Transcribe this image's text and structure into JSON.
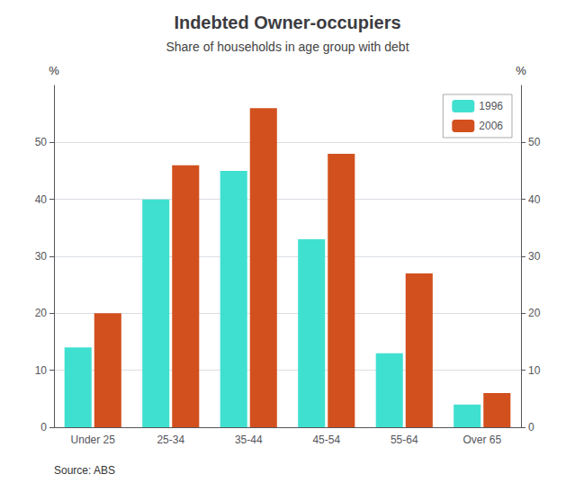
{
  "chart_data": {
    "type": "bar",
    "title": "Indebted Owner-occupiers",
    "subtitle": "Share of households in age group with debt",
    "categories": [
      "Under 25",
      "25-34",
      "35-44",
      "45-54",
      "55-64",
      "Over 65"
    ],
    "series": [
      {
        "name": "1996",
        "color": "#40E0D0",
        "values": [
          14,
          40,
          45,
          33,
          13,
          4
        ]
      },
      {
        "name": "2006",
        "color": "#D2501E",
        "values": [
          20,
          46,
          56,
          48,
          27,
          6
        ]
      }
    ],
    "ylabel": "%",
    "y2label": "%",
    "ylim": [
      0,
      60
    ],
    "yticks": [
      0,
      10,
      20,
      30,
      40,
      50
    ],
    "y2lim": [
      0,
      60
    ],
    "y2ticks": [
      0,
      10,
      20,
      30,
      40,
      50
    ],
    "grid": true,
    "legend": "upper right",
    "source": "Source: ABS"
  }
}
